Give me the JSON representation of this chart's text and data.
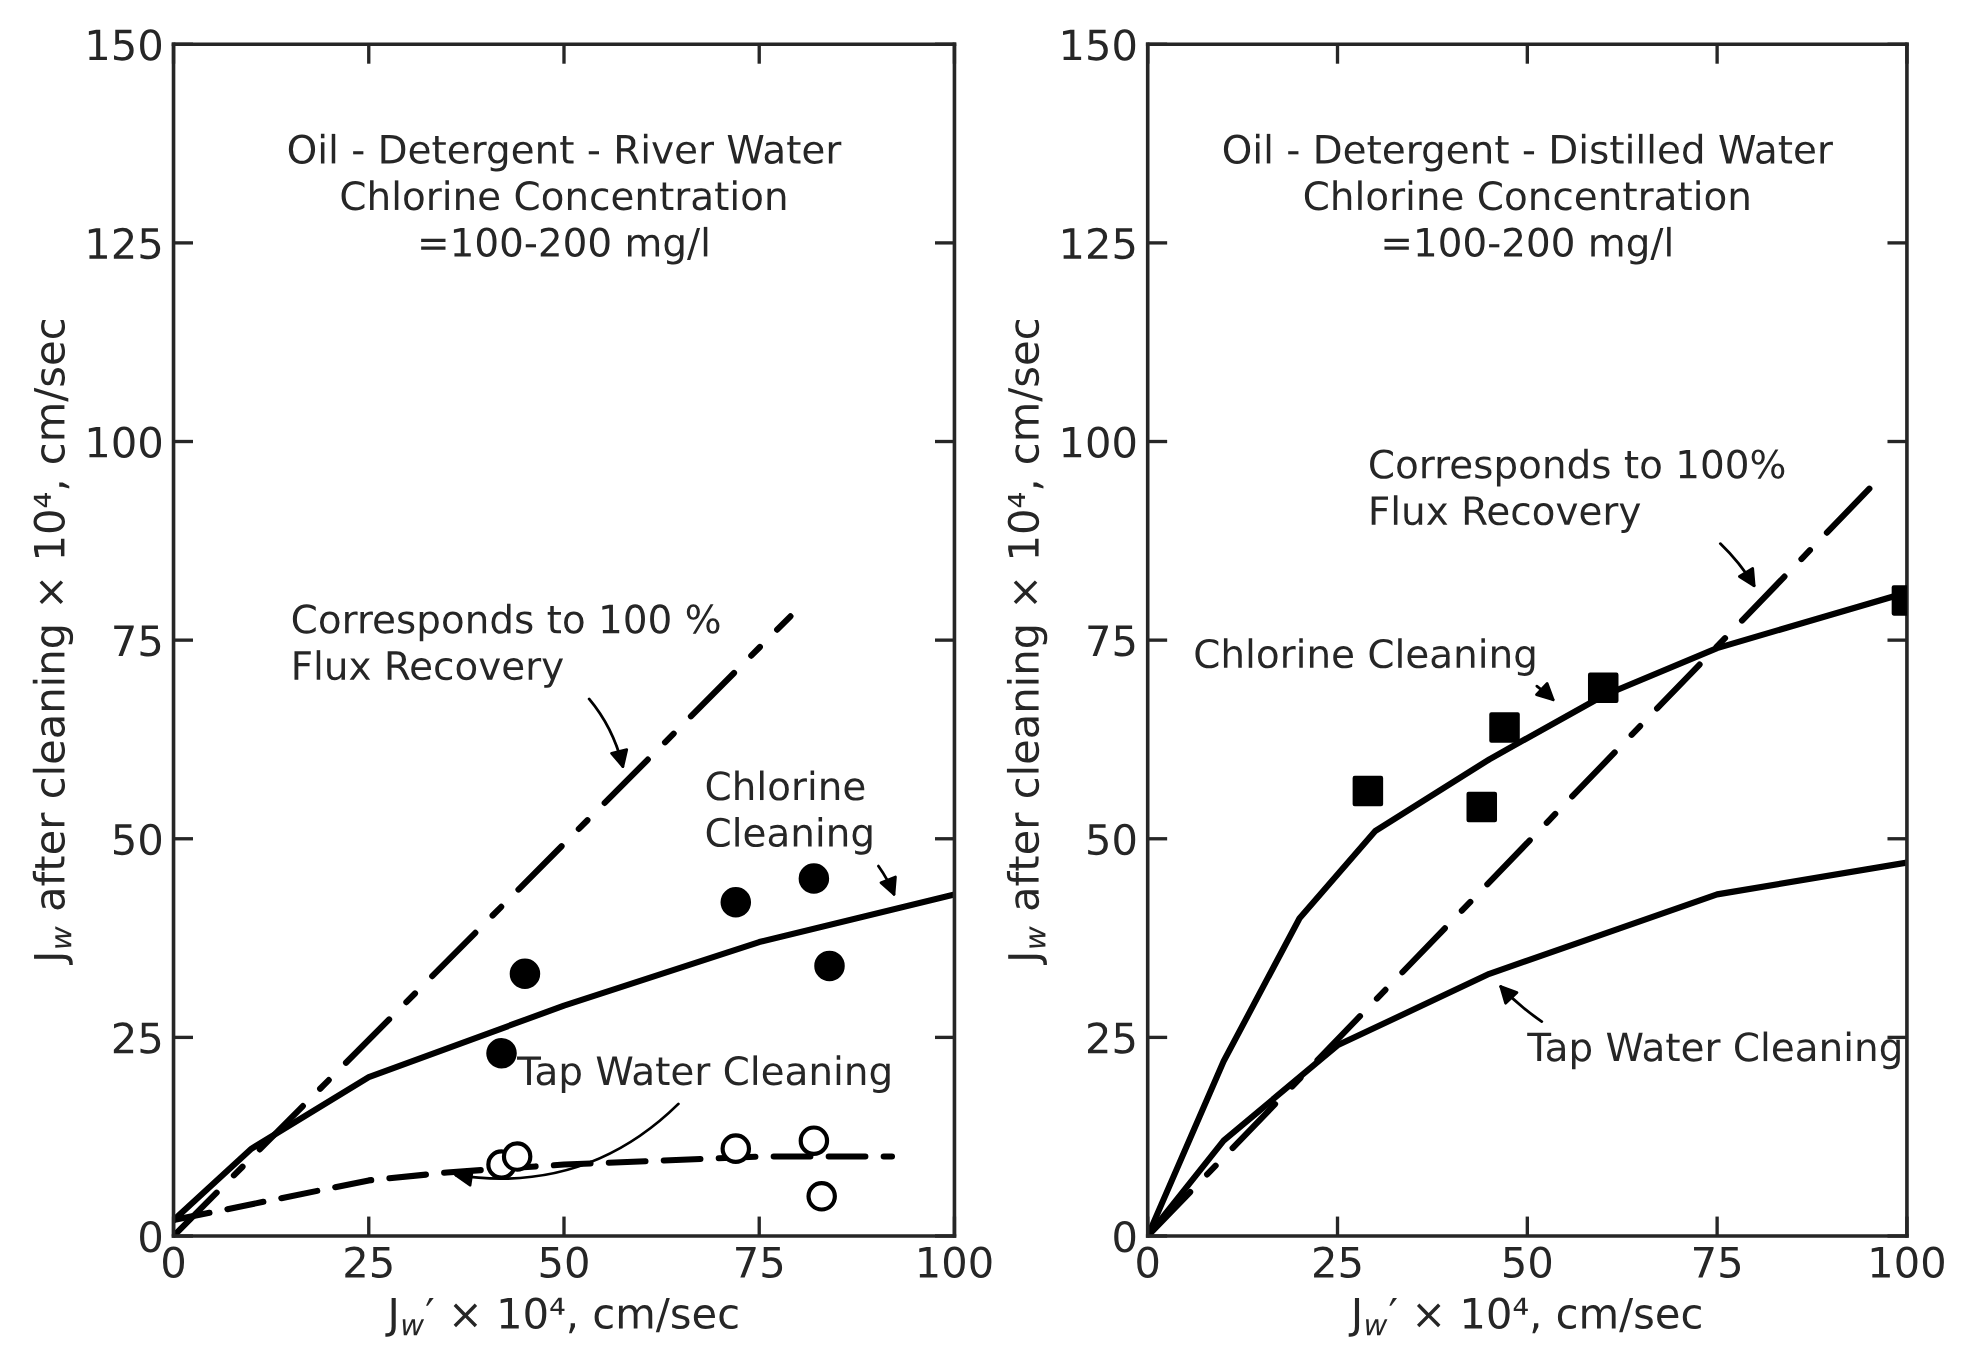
{
  "chart_data": [
    {
      "type": "scatter",
      "xlabel": "J$_{w}$′ × 10⁴, cm/sec",
      "ylabel": "J$_{w}$ after cleaning × 10⁴, cm/sec",
      "xlim": [
        0,
        100
      ],
      "ylim": [
        0,
        150
      ],
      "xticks": [
        0,
        25,
        50,
        75,
        100
      ],
      "yticks": [
        0,
        25,
        50,
        75,
        100,
        125,
        150
      ],
      "grid": false,
      "legend": false,
      "series": [
        {
          "type": "line",
          "color": "#000000",
          "line_style": "dashdot",
          "marker": "none",
          "x": [
            0,
            79
          ],
          "values": [
            0,
            78
          ]
        },
        {
          "type": "line",
          "color": "#000000",
          "line_style": "solid",
          "marker": "none",
          "x": [
            0,
            10,
            25,
            50,
            75,
            100
          ],
          "values": [
            2,
            11,
            20,
            29,
            37,
            43
          ]
        },
        {
          "type": "line",
          "color": "#000000",
          "line_style": "dashed",
          "marker": "none",
          "x": [
            0,
            10,
            25,
            35,
            50,
            75,
            92
          ],
          "values": [
            2,
            4,
            7,
            8,
            9,
            10,
            10
          ]
        },
        {
          "color": "#000000",
          "marker": "circle",
          "x": [
            42,
            45,
            72,
            82,
            84
          ],
          "values": [
            23,
            33,
            42,
            45,
            34
          ]
        },
        {
          "color": "#ffffff",
          "marker": "circle",
          "x": [
            42,
            44,
            72,
            82,
            83
          ],
          "values": [
            9,
            10,
            11,
            12,
            5
          ]
        }
      ],
      "annotations": [
        "Oil - Detergent - River Water\nChlorine Concentration\n=100-200 mg/l",
        {
          "text": "Corresponds to 100 %\nFlux Recovery",
          "x": 58,
          "y": 57
        },
        {
          "text": "Chlorine\nCleaning",
          "x": 93,
          "y": 41
        },
        {
          "text": "Tap Water Cleaning",
          "x": 34,
          "y": 8
        }
      ]
    },
    {
      "type": "scatter",
      "xlabel": "J$_{w}$′ × 10⁴, cm/sec",
      "ylabel": "J$_{w}$ after cleaning × 10⁴, cm/sec",
      "xlim": [
        0,
        100
      ],
      "ylim": [
        0,
        150
      ],
      "xticks": [
        0,
        25,
        50,
        75,
        100
      ],
      "yticks": [
        0,
        25,
        50,
        75,
        100,
        125,
        150
      ],
      "grid": false,
      "legend": false,
      "series": [
        {
          "type": "line",
          "color": "#000000",
          "line_style": "dashdot",
          "marker": "none",
          "x": [
            0,
            96
          ],
          "values": [
            0,
            95
          ]
        },
        {
          "type": "line",
          "color": "#000000",
          "line_style": "solid",
          "marker": "none",
          "x": [
            0,
            10,
            20,
            30,
            45,
            60,
            75,
            100
          ],
          "values": [
            0,
            22,
            40,
            51,
            60,
            68,
            74,
            81
          ]
        },
        {
          "type": "line",
          "color": "#000000",
          "line_style": "solid",
          "marker": "none",
          "x": [
            0,
            10,
            25,
            45,
            60,
            75,
            100
          ],
          "values": [
            0,
            12,
            24,
            33,
            38,
            43,
            47
          ]
        },
        {
          "color": "#000000",
          "marker": "square",
          "x": [
            29,
            44,
            47,
            60,
            100
          ],
          "values": [
            56,
            54,
            64,
            69,
            80
          ]
        }
      ],
      "annotations": [
        "Oil - Detergent - Distilled Water\nChlorine Concentration\n=100-200 mg/l",
        {
          "text": "Corresponds to 100%\nFlux Recovery",
          "x": 81,
          "y": 80
        },
        {
          "text": "Chlorine Cleaning",
          "x": 55,
          "y": 66
        },
        {
          "text": "Tap Water Cleaning",
          "x": 45,
          "y": 33
        }
      ]
    }
  ]
}
